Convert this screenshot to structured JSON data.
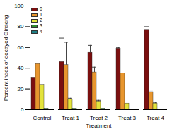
{
  "chart_data": {
    "type": "bar",
    "x_label": "Treatment",
    "y_label": "Percent index of decayed Ginseng",
    "categories": [
      "Control",
      "Treat 1",
      "Treat 2",
      "Treat 3",
      "Treat 4"
    ],
    "series": [
      {
        "name": "0",
        "color": "#7b0f0f",
        "values": [
          31,
          46,
          55,
          59,
          77
        ],
        "errors": [
          0,
          23,
          7,
          1,
          3
        ]
      },
      {
        "name": "1",
        "color": "#e8962e",
        "values": [
          44,
          43,
          36,
          35,
          17
        ],
        "errors": [
          0,
          22,
          5,
          0,
          2
        ]
      },
      {
        "name": "2",
        "color": "#e3e33c",
        "values": [
          24,
          10,
          8,
          6,
          6
        ],
        "errors": [
          0,
          1,
          1,
          0,
          1
        ]
      },
      {
        "name": "3",
        "color": "#2f8a2f",
        "values": [
          1,
          1,
          1,
          0.5,
          0.5
        ],
        "errors": [
          0,
          0,
          0,
          0,
          0
        ]
      },
      {
        "name": "4",
        "color": "#1f7f86",
        "values": [
          0,
          0,
          0,
          0,
          0
        ],
        "errors": [
          0,
          0,
          0,
          0,
          0
        ]
      }
    ],
    "ylim": [
      0,
      100
    ],
    "yticks": [
      0,
      20,
      40,
      60,
      80,
      100
    ],
    "legend": "top-left"
  }
}
